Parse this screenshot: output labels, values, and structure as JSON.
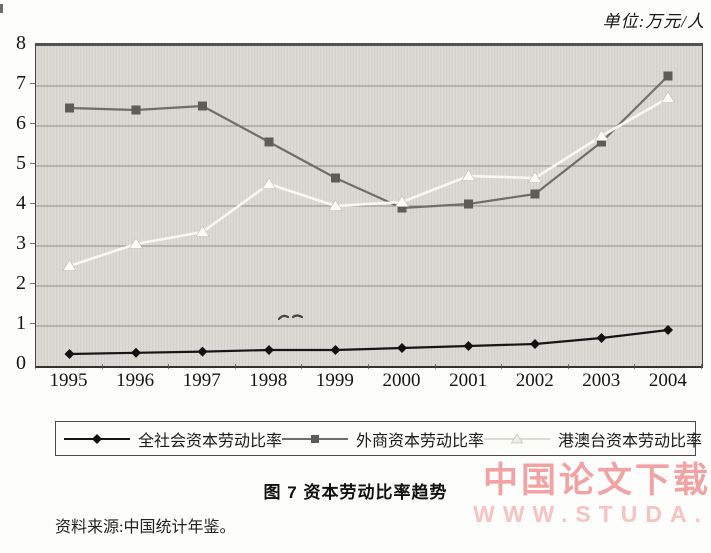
{
  "unit_label": "单位:万元/人",
  "caption": "图 7  资本劳动比率趋势",
  "source_note": "资料来源:中国统计年鉴。",
  "watermark": {
    "line1": "中国论文下载",
    "line2": "WWW.STUDA.",
    "color1": "#f1a3a3",
    "color2": "#f6c2c2"
  },
  "chart_data": {
    "type": "line",
    "title": "资本劳动比率趋势",
    "figure_label": "图 7",
    "unit": "万元/人",
    "categories": [
      "1995",
      "1996",
      "1997",
      "1998",
      "1999",
      "2000",
      "2001",
      "2002",
      "2003",
      "2004"
    ],
    "series": [
      {
        "key": "whole-society",
        "name": "全社会资本劳动比率",
        "marker": "diamond",
        "line_color": "#161616",
        "marker_color": "#111111",
        "values": [
          0.3,
          0.33,
          0.36,
          0.4,
          0.4,
          0.45,
          0.5,
          0.55,
          0.7,
          0.9
        ]
      },
      {
        "key": "foreign",
        "name": "外商资本劳动比率",
        "marker": "square",
        "line_color": "#6f6e6b",
        "marker_color": "#5d5c59",
        "values": [
          6.45,
          6.4,
          6.5,
          5.6,
          4.7,
          3.95,
          4.05,
          4.3,
          5.6,
          7.25
        ]
      },
      {
        "key": "hk-macao-taiwan",
        "name": "港澳台资本劳动比率",
        "marker": "triangle",
        "line_color": "#f8f7f3",
        "marker_color": "#fbfaf7",
        "values": [
          2.5,
          3.05,
          3.35,
          4.55,
          4.0,
          4.1,
          4.75,
          4.7,
          5.75,
          6.7
        ]
      }
    ],
    "ylim": [
      0,
      8
    ],
    "yticks": [
      0,
      1,
      2,
      3,
      4,
      5,
      6,
      7,
      8
    ],
    "grid": true,
    "gridline_color": "#918f8a",
    "plot_bg_color": "#d6d5d0",
    "legend_position": "bottom"
  }
}
